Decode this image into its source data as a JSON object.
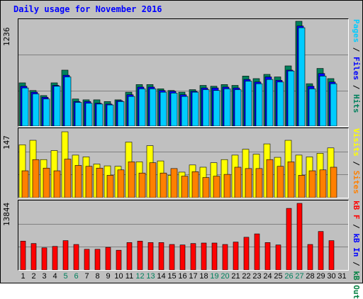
{
  "title": "Daily usage for November 2016",
  "colors": {
    "pages": "#00ccff",
    "files": "#0000ff",
    "hits": "#00805c",
    "visits": "#ffff00",
    "sites": "#ff8000",
    "kbin": "#0000ff",
    "kbout": "#008040",
    "kbf": "#ff0000",
    "weekend": "#00805c"
  },
  "chart_data": [
    {
      "type": "bar",
      "ymax_label": "1236",
      "ylim": [
        0,
        1236
      ],
      "legend": [
        {
          "key": "pages",
          "text": "Pages",
          "color": "#00ccff"
        },
        {
          "key": "sep1",
          "text": " / ",
          "color": "#000000"
        },
        {
          "key": "files",
          "text": "Files",
          "color": "#0000ff"
        },
        {
          "key": "sep2",
          "text": " / ",
          "color": "#000000"
        },
        {
          "key": "hits",
          "text": "Hits",
          "color": "#00805c"
        }
      ],
      "categories": [
        "1",
        "2",
        "3",
        "4",
        "5",
        "6",
        "7",
        "8",
        "9",
        "10",
        "11",
        "12",
        "13",
        "14",
        "15",
        "16",
        "17",
        "18",
        "19",
        "20",
        "21",
        "22",
        "23",
        "24",
        "25",
        "26",
        "27",
        "28",
        "29",
        "30",
        "31"
      ],
      "series": [
        {
          "name": "Hits",
          "color": "#00805c",
          "values": [
            510,
            420,
            360,
            510,
            660,
            320,
            310,
            310,
            290,
            310,
            400,
            490,
            490,
            440,
            420,
            400,
            430,
            480,
            470,
            490,
            480,
            590,
            560,
            610,
            580,
            710,
            1236,
            500,
            680,
            560,
            0
          ]
        },
        {
          "name": "Files",
          "color": "#0000ff",
          "values": [
            470,
            400,
            340,
            480,
            600,
            290,
            290,
            270,
            260,
            300,
            370,
            460,
            460,
            420,
            410,
            370,
            410,
            450,
            450,
            460,
            450,
            550,
            520,
            580,
            540,
            660,
            1180,
            470,
            620,
            520,
            0
          ]
        },
        {
          "name": "Pages",
          "color": "#00ccff",
          "values": [
            450,
            380,
            320,
            470,
            580,
            280,
            270,
            260,
            250,
            290,
            350,
            440,
            440,
            400,
            390,
            350,
            400,
            430,
            420,
            440,
            430,
            530,
            500,
            550,
            520,
            650,
            1160,
            440,
            590,
            500,
            0
          ]
        }
      ]
    },
    {
      "type": "bar",
      "ymax_label": "147",
      "ylim": [
        0,
        147
      ],
      "legend": [
        {
          "key": "visits",
          "text": "Visits",
          "color": "#ffff00"
        },
        {
          "key": "sep3",
          "text": " / ",
          "color": "#000000"
        },
        {
          "key": "sites",
          "text": "Sites",
          "color": "#ff8000"
        }
      ],
      "categories": [
        "1",
        "2",
        "3",
        "4",
        "5",
        "6",
        "7",
        "8",
        "9",
        "10",
        "11",
        "12",
        "13",
        "14",
        "15",
        "16",
        "17",
        "18",
        "19",
        "20",
        "21",
        "22",
        "23",
        "24",
        "25",
        "26",
        "27",
        "28",
        "29",
        "30",
        "31"
      ],
      "series": [
        {
          "name": "Visits",
          "color": "#ffff00",
          "values": [
            118,
            128,
            85,
            105,
            147,
            95,
            91,
            75,
            71,
            70,
            124,
            80,
            116,
            82,
            50,
            57,
            73,
            68,
            78,
            85,
            95,
            108,
            97,
            120,
            90,
            128,
            95,
            91,
            99,
            111,
            0
          ]
        },
        {
          "name": "Sites",
          "color": "#ff8000",
          "values": [
            60,
            85,
            66,
            60,
            86,
            72,
            70,
            66,
            50,
            62,
            80,
            55,
            78,
            55,
            65,
            48,
            58,
            45,
            48,
            52,
            68,
            65,
            65,
            85,
            70,
            80,
            50,
            60,
            62,
            68,
            0
          ]
        }
      ]
    },
    {
      "type": "bar",
      "ymax_label": "13844",
      "ylim": [
        0,
        13844
      ],
      "legend": [
        {
          "key": "kbf",
          "text": "kB F",
          "color": "#ff0000"
        },
        {
          "key": "sep4",
          "text": " / ",
          "color": "#000000"
        },
        {
          "key": "kbin",
          "text": "kB In",
          "color": "#0000ff"
        },
        {
          "key": "sep5",
          "text": " / ",
          "color": "#000000"
        },
        {
          "key": "kbout",
          "text": "kB Out",
          "color": "#008040"
        }
      ],
      "categories": [
        "1",
        "2",
        "3",
        "4",
        "5",
        "6",
        "7",
        "8",
        "9",
        "10",
        "11",
        "12",
        "13",
        "14",
        "15",
        "16",
        "17",
        "18",
        "19",
        "20",
        "21",
        "22",
        "23",
        "24",
        "25",
        "26",
        "27",
        "28",
        "29",
        "30",
        "31"
      ],
      "series": [
        {
          "name": "kB F",
          "color": "#ff0000",
          "values": [
            6000,
            5500,
            4600,
            4900,
            6100,
            5300,
            4300,
            4300,
            4700,
            4100,
            5700,
            6000,
            5700,
            5700,
            5300,
            5200,
            5500,
            5600,
            5600,
            5300,
            5800,
            6800,
            7500,
            5700,
            5200,
            12800,
            13844,
            5300,
            8000,
            6100,
            0
          ]
        }
      ]
    }
  ],
  "days": [
    {
      "label": "1",
      "weekend": false
    },
    {
      "label": "2",
      "weekend": false
    },
    {
      "label": "3",
      "weekend": false
    },
    {
      "label": "4",
      "weekend": false
    },
    {
      "label": "5",
      "weekend": true
    },
    {
      "label": "6",
      "weekend": true
    },
    {
      "label": "7",
      "weekend": false
    },
    {
      "label": "8",
      "weekend": false
    },
    {
      "label": "9",
      "weekend": false
    },
    {
      "label": "10",
      "weekend": false
    },
    {
      "label": "11",
      "weekend": false
    },
    {
      "label": "12",
      "weekend": true
    },
    {
      "label": "13",
      "weekend": true
    },
    {
      "label": "14",
      "weekend": false
    },
    {
      "label": "15",
      "weekend": false
    },
    {
      "label": "16",
      "weekend": false
    },
    {
      "label": "17",
      "weekend": false
    },
    {
      "label": "18",
      "weekend": false
    },
    {
      "label": "19",
      "weekend": true
    },
    {
      "label": "20",
      "weekend": true
    },
    {
      "label": "21",
      "weekend": false
    },
    {
      "label": "22",
      "weekend": false
    },
    {
      "label": "23",
      "weekend": false
    },
    {
      "label": "24",
      "weekend": false
    },
    {
      "label": "25",
      "weekend": false
    },
    {
      "label": "26",
      "weekend": true
    },
    {
      "label": "27",
      "weekend": true
    },
    {
      "label": "28",
      "weekend": false
    },
    {
      "label": "29",
      "weekend": false
    },
    {
      "label": "30",
      "weekend": false
    },
    {
      "label": "31",
      "weekend": false
    }
  ]
}
